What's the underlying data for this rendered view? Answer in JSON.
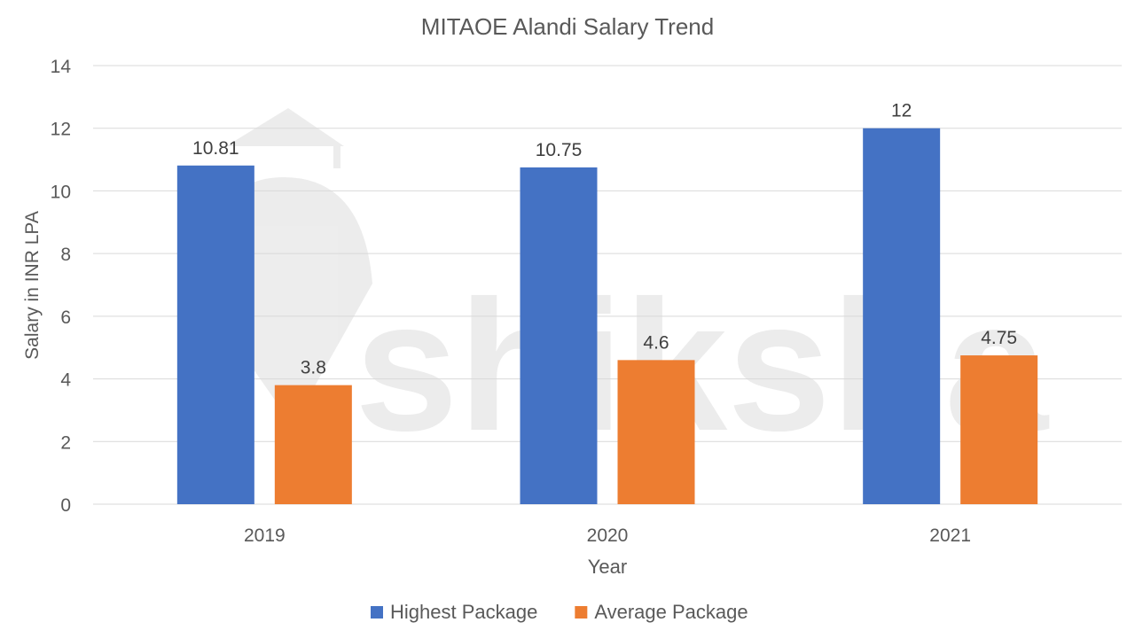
{
  "chart_data": {
    "type": "bar",
    "title": "MITAOE Alandi Salary Trend",
    "xlabel": "Year",
    "ylabel": "Salary in INR LPA",
    "categories": [
      "2019",
      "2020",
      "2021"
    ],
    "series": [
      {
        "name": "Highest Package",
        "values": [
          10.81,
          10.75,
          12
        ],
        "labels": [
          "10.81",
          "10.75",
          "12"
        ],
        "color": "#4472C4"
      },
      {
        "name": "Average Package",
        "values": [
          3.8,
          4.6,
          4.75
        ],
        "labels": [
          "3.8",
          "4.6",
          "4.75"
        ],
        "color": "#ED7D31"
      }
    ],
    "ylim": [
      0,
      14
    ],
    "yticks": [
      "0",
      "2",
      "4",
      "6",
      "8",
      "10",
      "12",
      "14"
    ],
    "grid": true,
    "legend_position": "bottom",
    "watermark": "shiksha"
  }
}
